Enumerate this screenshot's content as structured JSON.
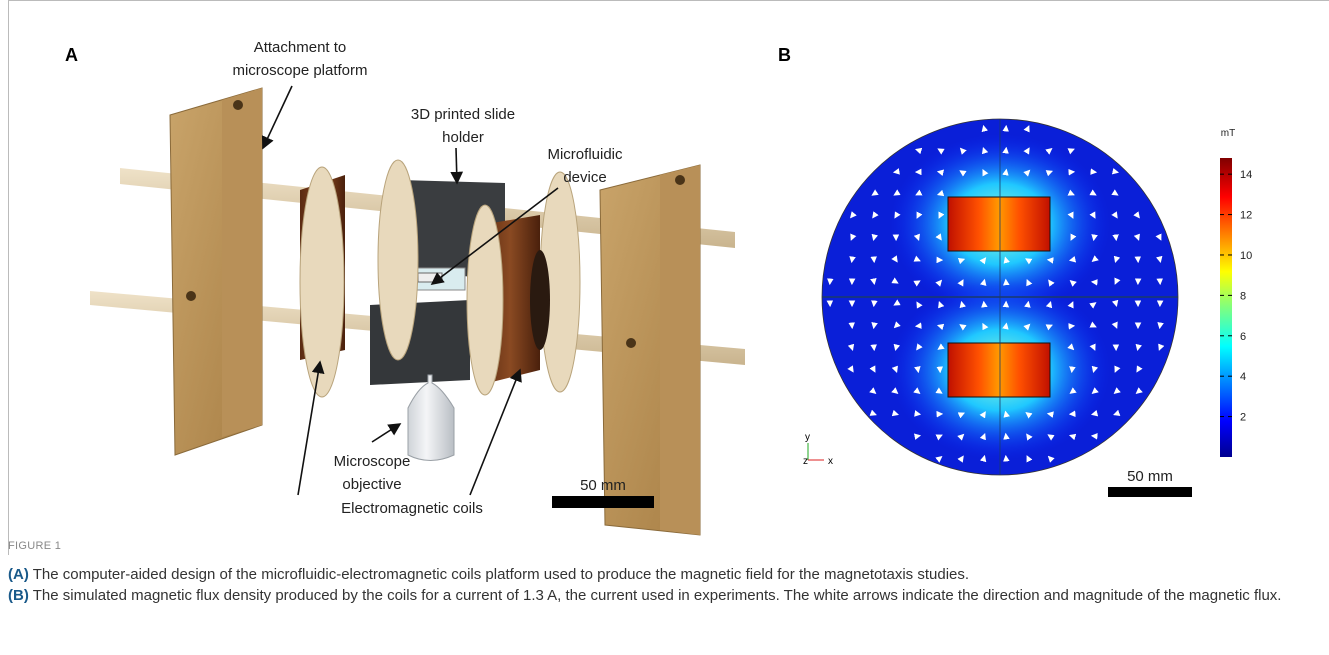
{
  "figure": {
    "panel_a": {
      "label": "A",
      "annotations": [
        {
          "lines": [
            "Attachment to",
            "microscope platform"
          ]
        },
        {
          "lines": [
            "3D printed slide",
            "holder"
          ]
        },
        {
          "lines": [
            "Microfluidic",
            "device"
          ]
        },
        {
          "lines": [
            "Microscope",
            "objective"
          ]
        },
        {
          "lines": [
            "Electromagnetic coils"
          ]
        }
      ],
      "scale_bar": "50 mm"
    },
    "panel_b": {
      "label": "B",
      "colorbar": {
        "label": "mT",
        "lim": [
          0,
          14.8
        ],
        "ticks": [
          2,
          4,
          6,
          8,
          10,
          12,
          14
        ]
      },
      "axes": {
        "y": "y",
        "z": "z",
        "x": "x"
      },
      "scale_bar": "50 mm"
    },
    "figure_label": "FIGURE 1",
    "caption": [
      {
        "label": "(A)",
        "text": " The computer-aided design of the microfluidic-electromagnetic coils platform used to produce the magnetic field for the magnetotaxis studies."
      },
      {
        "label": "(B)",
        "text": " The simulated magnetic flux density produced by the coils for a current of 1.3 A, the current used in experiments. The white arrows indicate the direction and magnitude of the magnetic flux."
      }
    ]
  }
}
